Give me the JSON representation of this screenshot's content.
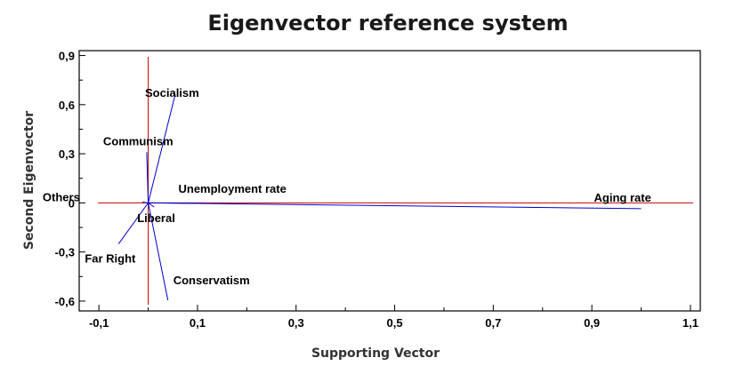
{
  "chart_data": {
    "type": "scatter",
    "title": "Eigenvector reference system",
    "xlabel": "Supporting Vector",
    "ylabel": "Second Eigenvector",
    "xlim": [
      -0.14,
      1.12
    ],
    "ylim": [
      -0.66,
      0.93
    ],
    "x_ticks": [
      -0.1,
      0.1,
      0.3,
      0.5,
      0.7,
      0.9,
      1.1
    ],
    "x_tick_labels": [
      "-0,1",
      "0,1",
      "0,3",
      "0,5",
      "0,7",
      "0,9",
      "1,1"
    ],
    "y_ticks": [
      -0.6,
      -0.3,
      0,
      0.3,
      0.6,
      0.9
    ],
    "y_tick_labels": [
      "-0,6",
      "-0,3",
      "0",
      "0,3",
      "0,6",
      "0,9"
    ],
    "grid": false,
    "reference_lines": {
      "horizontal_at": 0,
      "vertical_at": 0,
      "color": "#cc0000"
    },
    "vector_color": "#0000cc",
    "vectors": [
      {
        "label": "Socialism",
        "x": 0.055,
        "y": 0.665
      },
      {
        "label": "Communism",
        "x": -0.003,
        "y": 0.31
      },
      {
        "label": "Others",
        "x": -0.012,
        "y": 0.005
      },
      {
        "label": "Unemployment rate",
        "x": 0.11,
        "y": -0.003
      },
      {
        "label": "Aging rate",
        "x": 1.0,
        "y": -0.035
      },
      {
        "label": "Liberal",
        "x": 0.012,
        "y": -0.025
      },
      {
        "label": "Far Right",
        "x": -0.06,
        "y": -0.25
      },
      {
        "label": "Conservatism",
        "x": 0.04,
        "y": -0.595
      }
    ]
  }
}
